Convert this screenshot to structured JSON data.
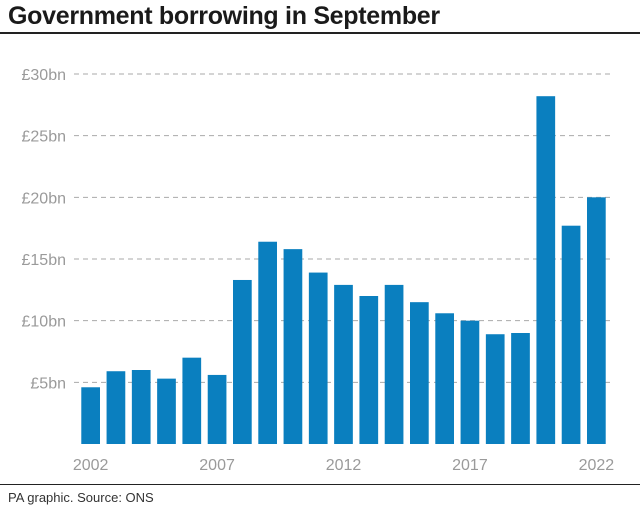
{
  "title": "Government borrowing in September",
  "source": "PA graphic. Source: ONS",
  "colors": {
    "bar": "#0a7fbf",
    "grid": "#aaaaaa",
    "axis_text": "#9a9a9a"
  },
  "chart_data": {
    "type": "bar",
    "title": "Government borrowing in September",
    "xlabel": "",
    "ylabel": "",
    "categories": [
      "2002",
      "2003",
      "2004",
      "2005",
      "2006",
      "2007",
      "2008",
      "2009",
      "2010",
      "2011",
      "2012",
      "2013",
      "2014",
      "2015",
      "2016",
      "2017",
      "2018",
      "2019",
      "2020",
      "2021",
      "2022"
    ],
    "values": [
      4.6,
      5.9,
      6.0,
      5.3,
      7.0,
      5.6,
      13.3,
      16.4,
      15.8,
      13.9,
      12.9,
      12.0,
      12.9,
      11.5,
      10.6,
      10.0,
      8.9,
      9.0,
      28.2,
      17.7,
      20.0
    ],
    "ylim": [
      0,
      30
    ],
    "yticks": [
      5,
      10,
      15,
      20,
      25,
      30
    ],
    "ytick_labels": [
      "£5bn",
      "£10bn",
      "£15bn",
      "£20bn",
      "£25bn",
      "£30bn"
    ],
    "xtick_labels": [
      {
        "category": "2002",
        "label": "2002"
      },
      {
        "category": "2007",
        "label": "2007"
      },
      {
        "category": "2012",
        "label": "2012"
      },
      {
        "category": "2017",
        "label": "2017"
      },
      {
        "category": "2022",
        "label": "2022"
      }
    ],
    "grid": "horizontal dashed",
    "legend": "none"
  }
}
